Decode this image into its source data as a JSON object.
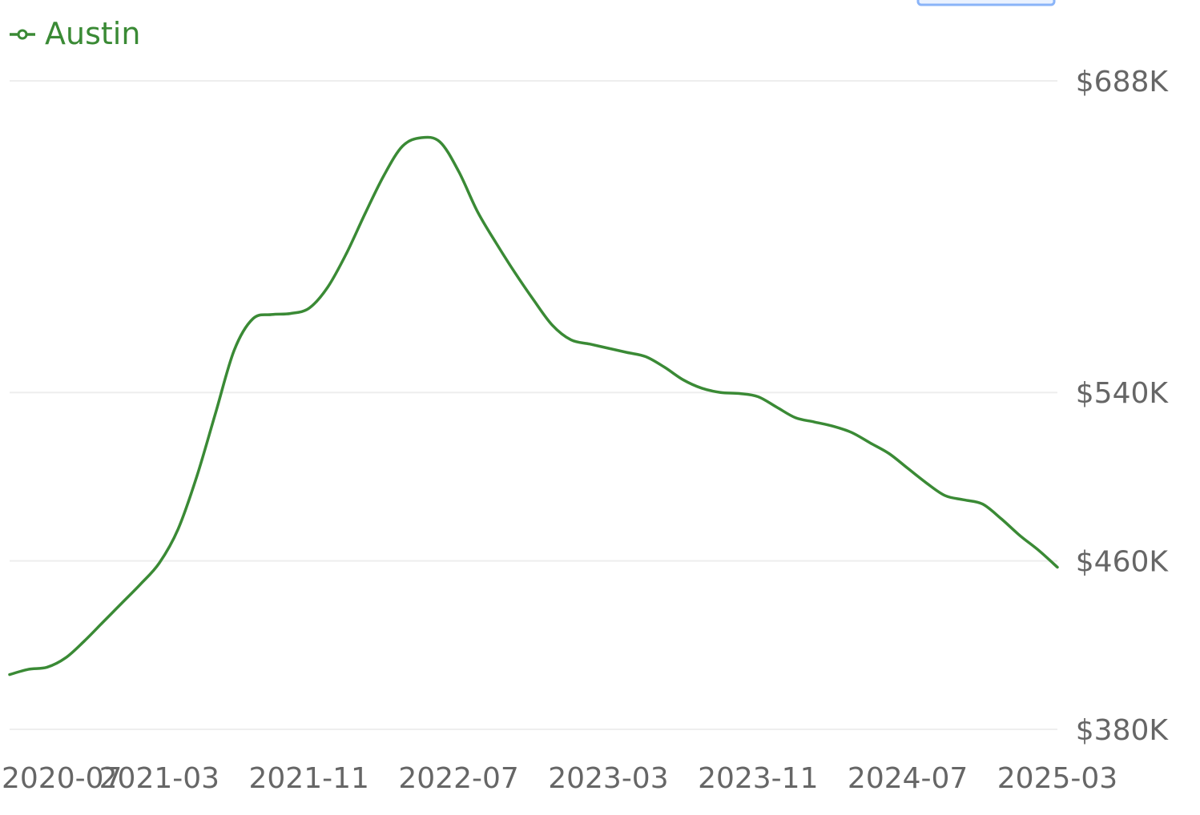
{
  "chart_data": {
    "type": "line",
    "title": "",
    "xlabel": "",
    "ylabel": "",
    "legend": {
      "position": "top-left",
      "entries": [
        "Austin"
      ]
    },
    "grid": true,
    "x_ticks": [
      "2020-07",
      "2021-03",
      "2021-11",
      "2022-07",
      "2023-03",
      "2023-11",
      "2024-07",
      "2025-03"
    ],
    "y_ticks": [
      {
        "value": 380,
        "label": "$380K"
      },
      {
        "value": 460,
        "label": "$460K"
      },
      {
        "value": 540,
        "label": "$540K"
      },
      {
        "value": 688,
        "label": "$688K"
      }
    ],
    "ylim": [
      380,
      688
    ],
    "xlim": [
      "2020-07",
      "2025-03"
    ],
    "series": [
      {
        "name": "Austin",
        "color": "#3a8a35",
        "x": [
          "2020-07",
          "2020-08",
          "2020-09",
          "2020-10",
          "2020-11",
          "2020-12",
          "2021-01",
          "2021-02",
          "2021-03",
          "2021-04",
          "2021-05",
          "2021-06",
          "2021-07",
          "2021-08",
          "2021-09",
          "2021-10",
          "2021-11",
          "2021-12",
          "2022-01",
          "2022-02",
          "2022-03",
          "2022-04",
          "2022-05",
          "2022-06",
          "2022-07",
          "2022-08",
          "2022-09",
          "2022-10",
          "2022-11",
          "2022-12",
          "2023-01",
          "2023-02",
          "2023-03",
          "2023-04",
          "2023-05",
          "2023-06",
          "2023-07",
          "2023-08",
          "2023-09",
          "2023-10",
          "2023-11",
          "2023-12",
          "2024-01",
          "2024-02",
          "2024-03",
          "2024-04",
          "2024-05",
          "2024-06",
          "2024-07",
          "2024-08",
          "2024-09",
          "2024-10",
          "2024-11",
          "2024-12",
          "2025-01",
          "2025-02",
          "2025-03"
        ],
        "values": [
          406,
          408.5,
          409.5,
          414,
          422,
          431,
          440,
          449,
          459,
          475,
          500,
          530,
          560,
          575,
          577,
          577.5,
          580,
          590,
          606,
          625,
          643,
          657,
          661,
          659,
          645,
          626,
          611,
          597,
          584,
          572,
          565,
          563,
          561,
          559,
          557,
          552,
          546,
          542,
          540,
          539.5,
          538,
          533,
          528,
          526,
          524,
          521,
          516,
          511,
          504,
          497,
          491,
          489,
          487,
          480,
          472,
          465,
          457
        ]
      }
    ]
  },
  "top_button": {
    "label": ""
  }
}
